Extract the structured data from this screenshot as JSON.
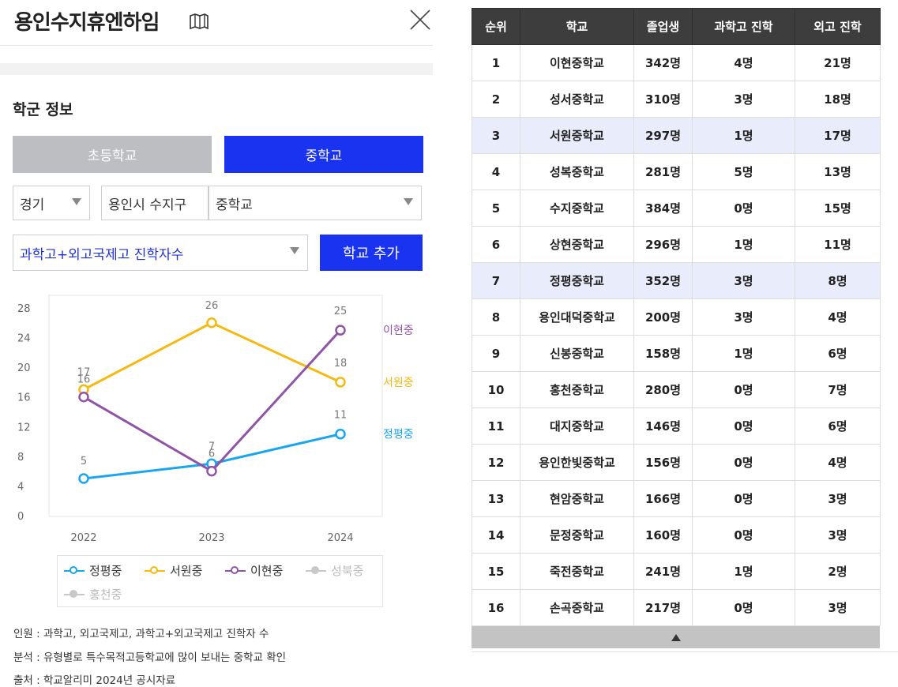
{
  "header": {
    "title": "용인수지휴엔하임"
  },
  "section_title": "학군 정보",
  "tabs": {
    "elementary": "초등학교",
    "middle": "중학교"
  },
  "filters": {
    "province": "경기",
    "city": "용인시 수지구",
    "level": "중학교",
    "metric": "과학고+외고국제고 진학자수",
    "add_button": "학교 추가"
  },
  "chart_data": {
    "type": "line",
    "x": [
      "2022",
      "2023",
      "2024"
    ],
    "ylim": [
      0,
      28
    ],
    "yticks": [
      "0",
      "4",
      "8",
      "12",
      "16",
      "20",
      "24",
      "28"
    ],
    "grid": false,
    "series": [
      {
        "name": "정평중",
        "color": "#1aa6ee",
        "values": [
          5,
          7,
          11
        ],
        "end_label": "정평중"
      },
      {
        "name": "서원중",
        "color": "#f5b90f",
        "values": [
          17,
          26,
          18
        ],
        "end_label": "서원중"
      },
      {
        "name": "이현중",
        "color": "#9054a6",
        "values": [
          16,
          6,
          25
        ],
        "end_label": "이현중"
      }
    ],
    "legend": [
      {
        "name": "정평중",
        "color": "#1aa6ee",
        "active": true
      },
      {
        "name": "서원중",
        "color": "#f5b90f",
        "active": true
      },
      {
        "name": "이현중",
        "color": "#9054a6",
        "active": true
      },
      {
        "name": "성북중",
        "color": "#c8c8c8",
        "active": false
      },
      {
        "name": "홍천중",
        "color": "#c8c8c8",
        "active": false
      }
    ],
    "legend_position": "bottom"
  },
  "notes": [
    "인원 : 과학고, 외고국제고, 과학고+외고국제고 진학자 수",
    "분석 : 유형별로 특수목적고등학교에 많이 보내는 중학교 확인",
    "출처 : 학교알리미 2024년 공시자료"
  ],
  "table": {
    "headers": [
      "순위",
      "학교",
      "졸업생",
      "과학고 진학",
      "외고 진학"
    ],
    "rows": [
      [
        "1",
        "이현중학교",
        "342명",
        "4명",
        "21명"
      ],
      [
        "2",
        "성서중학교",
        "310명",
        "3명",
        "18명"
      ],
      [
        "3",
        "서원중학교",
        "297명",
        "1명",
        "17명"
      ],
      [
        "4",
        "성복중학교",
        "281명",
        "5명",
        "13명"
      ],
      [
        "5",
        "수지중학교",
        "384명",
        "0명",
        "15명"
      ],
      [
        "6",
        "상현중학교",
        "296명",
        "1명",
        "11명"
      ],
      [
        "7",
        "정평중학교",
        "352명",
        "3명",
        "8명"
      ],
      [
        "8",
        "용인대덕중학교",
        "200명",
        "3명",
        "4명"
      ],
      [
        "9",
        "신봉중학교",
        "158명",
        "1명",
        "6명"
      ],
      [
        "10",
        "홍천중학교",
        "280명",
        "0명",
        "7명"
      ],
      [
        "11",
        "대지중학교",
        "146명",
        "0명",
        "6명"
      ],
      [
        "12",
        "용인한빛중학교",
        "156명",
        "0명",
        "4명"
      ],
      [
        "13",
        "현암중학교",
        "166명",
        "0명",
        "3명"
      ],
      [
        "14",
        "문정중학교",
        "160명",
        "0명",
        "3명"
      ],
      [
        "15",
        "죽전중학교",
        "241명",
        "1명",
        "2명"
      ],
      [
        "16",
        "손곡중학교",
        "217명",
        "0명",
        "3명"
      ]
    ],
    "highlighted_ranks": [
      "3",
      "7"
    ]
  }
}
